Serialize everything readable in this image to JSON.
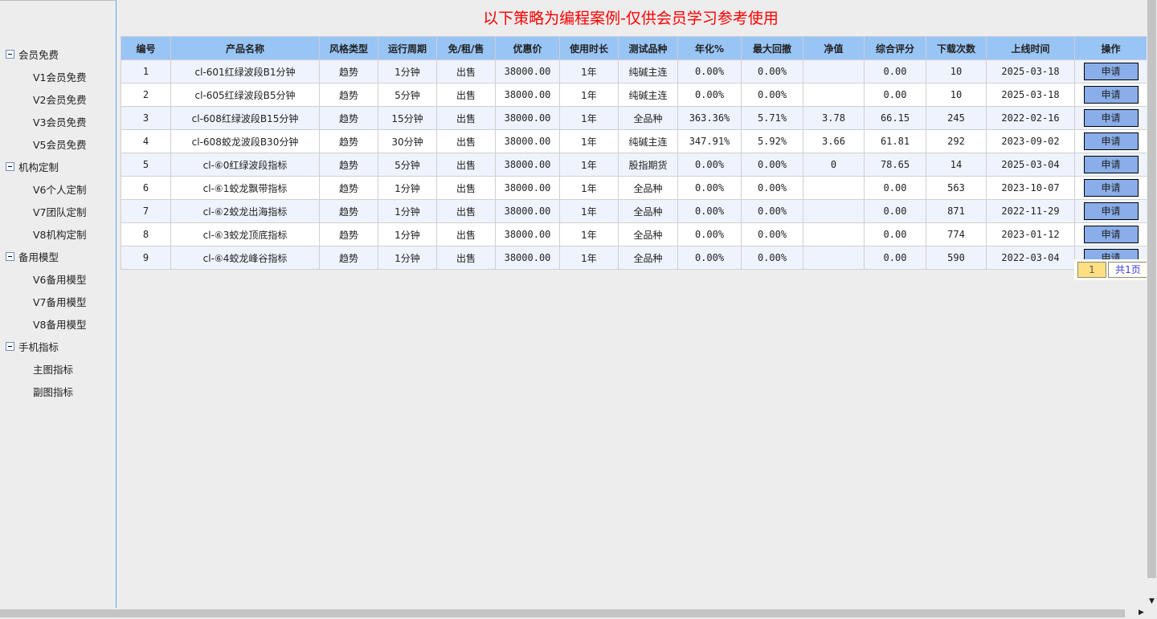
{
  "title": "以下策略为编程案例-仅供会员学习参考使用",
  "sidebar": [
    {
      "label": "会员免费",
      "items": [
        "V1会员免费",
        "V2会员免费",
        "V3会员免费",
        "V5会员免费"
      ]
    },
    {
      "label": "机构定制",
      "items": [
        "V6个人定制",
        "V7团队定制",
        "V8机构定制"
      ]
    },
    {
      "label": "备用模型",
      "items": [
        "V6备用模型",
        "V7备用模型",
        "V8备用模型"
      ]
    },
    {
      "label": "手机指标",
      "items": [
        "主图指标",
        "副图指标"
      ]
    }
  ],
  "table": {
    "headers": [
      "编号",
      "产品名称",
      "风格类型",
      "运行周期",
      "免/租/售",
      "优惠价",
      "使用时长",
      "测试品种",
      "年化%",
      "最大回撤",
      "净值",
      "综合评分",
      "下载次数",
      "上线时间",
      "操作"
    ],
    "rows": [
      [
        "1",
        "cl-601红绿波段B1分钟",
        "趋势",
        "1分钟",
        "出售",
        "38000.00",
        "1年",
        "纯碱主连",
        "0.00%",
        "0.00%",
        "",
        "0.00",
        "10",
        "2025-03-18"
      ],
      [
        "2",
        "cl-605红绿波段B5分钟",
        "趋势",
        "5分钟",
        "出售",
        "38000.00",
        "1年",
        "纯碱主连",
        "0.00%",
        "0.00%",
        "",
        "0.00",
        "10",
        "2025-03-18"
      ],
      [
        "3",
        "cl-608红绿波段B15分钟",
        "趋势",
        "15分钟",
        "出售",
        "38000.00",
        "1年",
        "全品种",
        "363.36%",
        "5.71%",
        "3.78",
        "66.15",
        "245",
        "2022-02-16"
      ],
      [
        "4",
        "cl-608蛟龙波段B30分钟",
        "趋势",
        "30分钟",
        "出售",
        "38000.00",
        "1年",
        "纯碱主连",
        "347.91%",
        "5.92%",
        "3.66",
        "61.81",
        "292",
        "2023-09-02"
      ],
      [
        "5",
        "cl-⑥0红绿波段指标",
        "趋势",
        "5分钟",
        "出售",
        "38000.00",
        "1年",
        "股指期货",
        "0.00%",
        "0.00%",
        "0",
        "78.65",
        "14",
        "2025-03-04"
      ],
      [
        "6",
        "cl-⑥1蛟龙飘带指标",
        "趋势",
        "1分钟",
        "出售",
        "38000.00",
        "1年",
        "全品种",
        "0.00%",
        "0.00%",
        "",
        "0.00",
        "563",
        "2023-10-07"
      ],
      [
        "7",
        "cl-⑥2蛟龙出海指标",
        "趋势",
        "1分钟",
        "出售",
        "38000.00",
        "1年",
        "全品种",
        "0.00%",
        "0.00%",
        "",
        "0.00",
        "871",
        "2022-11-29"
      ],
      [
        "8",
        "cl-⑥3蛟龙顶底指标",
        "趋势",
        "1分钟",
        "出售",
        "38000.00",
        "1年",
        "全品种",
        "0.00%",
        "0.00%",
        "",
        "0.00",
        "774",
        "2023-01-12"
      ],
      [
        "9",
        "cl-⑥4蛟龙峰谷指标",
        "趋势",
        "1分钟",
        "出售",
        "38000.00",
        "1年",
        "全品种",
        "0.00%",
        "0.00%",
        "",
        "0.00",
        "590",
        "2022-03-04"
      ]
    ],
    "action_label": "申请"
  },
  "pager": {
    "current": "1",
    "total": "共1页"
  },
  "colors": {
    "title": "#ff0000",
    "header": "#99c5f5",
    "button": "#8aaeea"
  }
}
